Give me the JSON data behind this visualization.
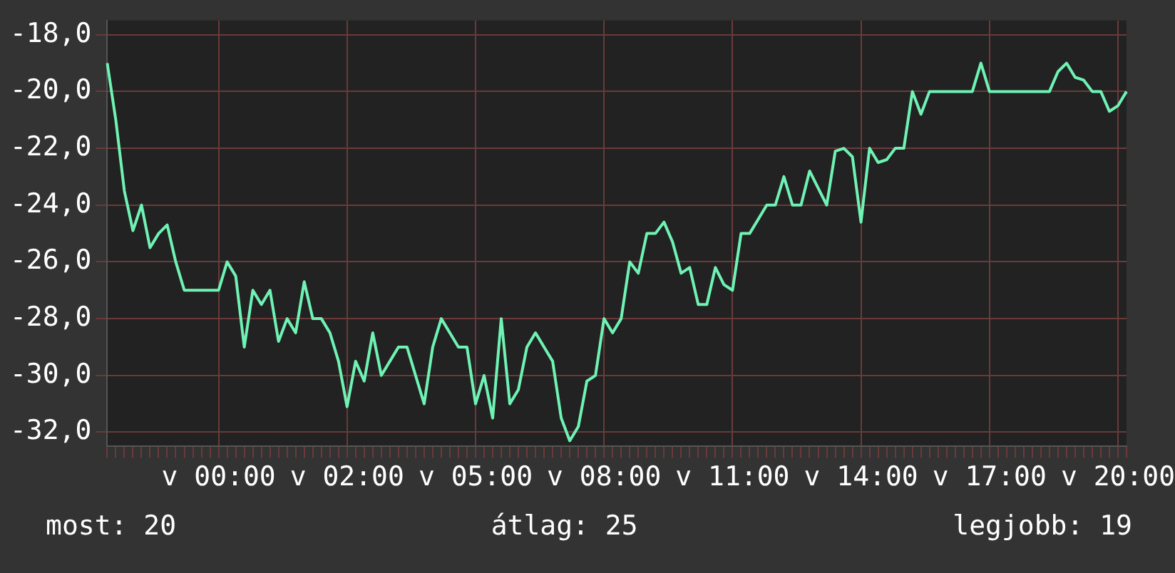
{
  "chart_data": {
    "type": "line",
    "categories": [
      null,
      null,
      null,
      null,
      null,
      null,
      null,
      null,
      null,
      null,
      null,
      null,
      null,
      "v 00:00",
      null,
      null,
      null,
      null,
      null,
      null,
      null,
      null,
      null,
      null,
      null,
      null,
      null,
      null,
      "v 02:00",
      null,
      null,
      null,
      null,
      null,
      null,
      null,
      null,
      null,
      null,
      null,
      null,
      null,
      null,
      "v 05:00",
      null,
      null,
      null,
      null,
      null,
      null,
      null,
      null,
      null,
      null,
      null,
      null,
      null,
      null,
      "v 08:00",
      null,
      null,
      null,
      null,
      null,
      null,
      null,
      null,
      null,
      null,
      null,
      null,
      null,
      null,
      "v 11:00",
      null,
      null,
      null,
      null,
      null,
      null,
      null,
      null,
      null,
      null,
      null,
      null,
      null,
      null,
      "v 14:00",
      null,
      null,
      null,
      null,
      null,
      null,
      null,
      null,
      null,
      null,
      null,
      null,
      null,
      null,
      "v 17:00",
      null,
      null,
      null,
      null,
      null,
      null,
      null,
      null,
      null,
      null,
      null,
      null,
      null,
      null,
      "v 20:00",
      null
    ],
    "series": [
      {
        "color": "#6ff2b4",
        "values": [
          -19.0,
          -21.0,
          -23.5,
          -24.9,
          -24.0,
          -25.5,
          -25.0,
          -24.7,
          -26.0,
          -27.0,
          -27.0,
          -27.0,
          -27.0,
          -27.0,
          -26.0,
          -26.5,
          -29.0,
          -27.0,
          -27.5,
          -27.0,
          -28.8,
          -28.0,
          -28.5,
          -26.7,
          -28.0,
          -28.0,
          -28.5,
          -29.5,
          -31.1,
          -29.5,
          -30.2,
          -28.5,
          -30.0,
          -29.5,
          -29.0,
          -29.0,
          -30.0,
          -31.0,
          -29.0,
          -28.0,
          -28.5,
          -29.0,
          -29.0,
          -31.0,
          -30.0,
          -31.5,
          -28.0,
          -31.0,
          -30.5,
          -29.0,
          -28.5,
          -29.0,
          -29.5,
          -31.5,
          -32.3,
          -31.8,
          -30.2,
          -30.0,
          -28.0,
          -28.5,
          -28.0,
          -26.0,
          -26.4,
          -25.0,
          -25.0,
          -24.6,
          -25.3,
          -26.4,
          -26.2,
          -27.5,
          -27.5,
          -26.2,
          -26.8,
          -27.0,
          -25.0,
          -25.0,
          -24.5,
          -24.0,
          -24.0,
          -23.0,
          -24.0,
          -24.0,
          -22.8,
          -23.4,
          -24.0,
          -22.1,
          -22.0,
          -22.3,
          -24.6,
          -22.0,
          -22.5,
          -22.4,
          -22.0,
          -22.0,
          -20.0,
          -20.8,
          -20.0,
          -20.0,
          -20.0,
          -20.0,
          -20.0,
          -20.0,
          -19.0,
          -20.0,
          -20.0,
          -20.0,
          -20.0,
          -20.0,
          -20.0,
          -20.0,
          -20.0,
          -19.3,
          -19.0,
          -19.5,
          -19.6,
          -20.0,
          -20.0,
          -20.7,
          -20.5,
          -20.0
        ]
      }
    ],
    "ylim": [
      -32.5,
      -17.5
    ],
    "yticks": [
      {
        "value": -32,
        "label": "-32,0"
      },
      {
        "value": -30,
        "label": "-30,0"
      },
      {
        "value": -28,
        "label": "-28,0"
      },
      {
        "value": -26,
        "label": "-26,0"
      },
      {
        "value": -24,
        "label": "-24,0"
      },
      {
        "value": -22,
        "label": "-22,0"
      },
      {
        "value": -20,
        "label": "-20,0"
      },
      {
        "value": -18,
        "label": "-18,0"
      }
    ],
    "grid": true,
    "legend": false,
    "marker": "none",
    "line_style": "solid",
    "annotations": [
      "most: 20",
      "átlag: 25",
      "legjobb: 19"
    ]
  }
}
